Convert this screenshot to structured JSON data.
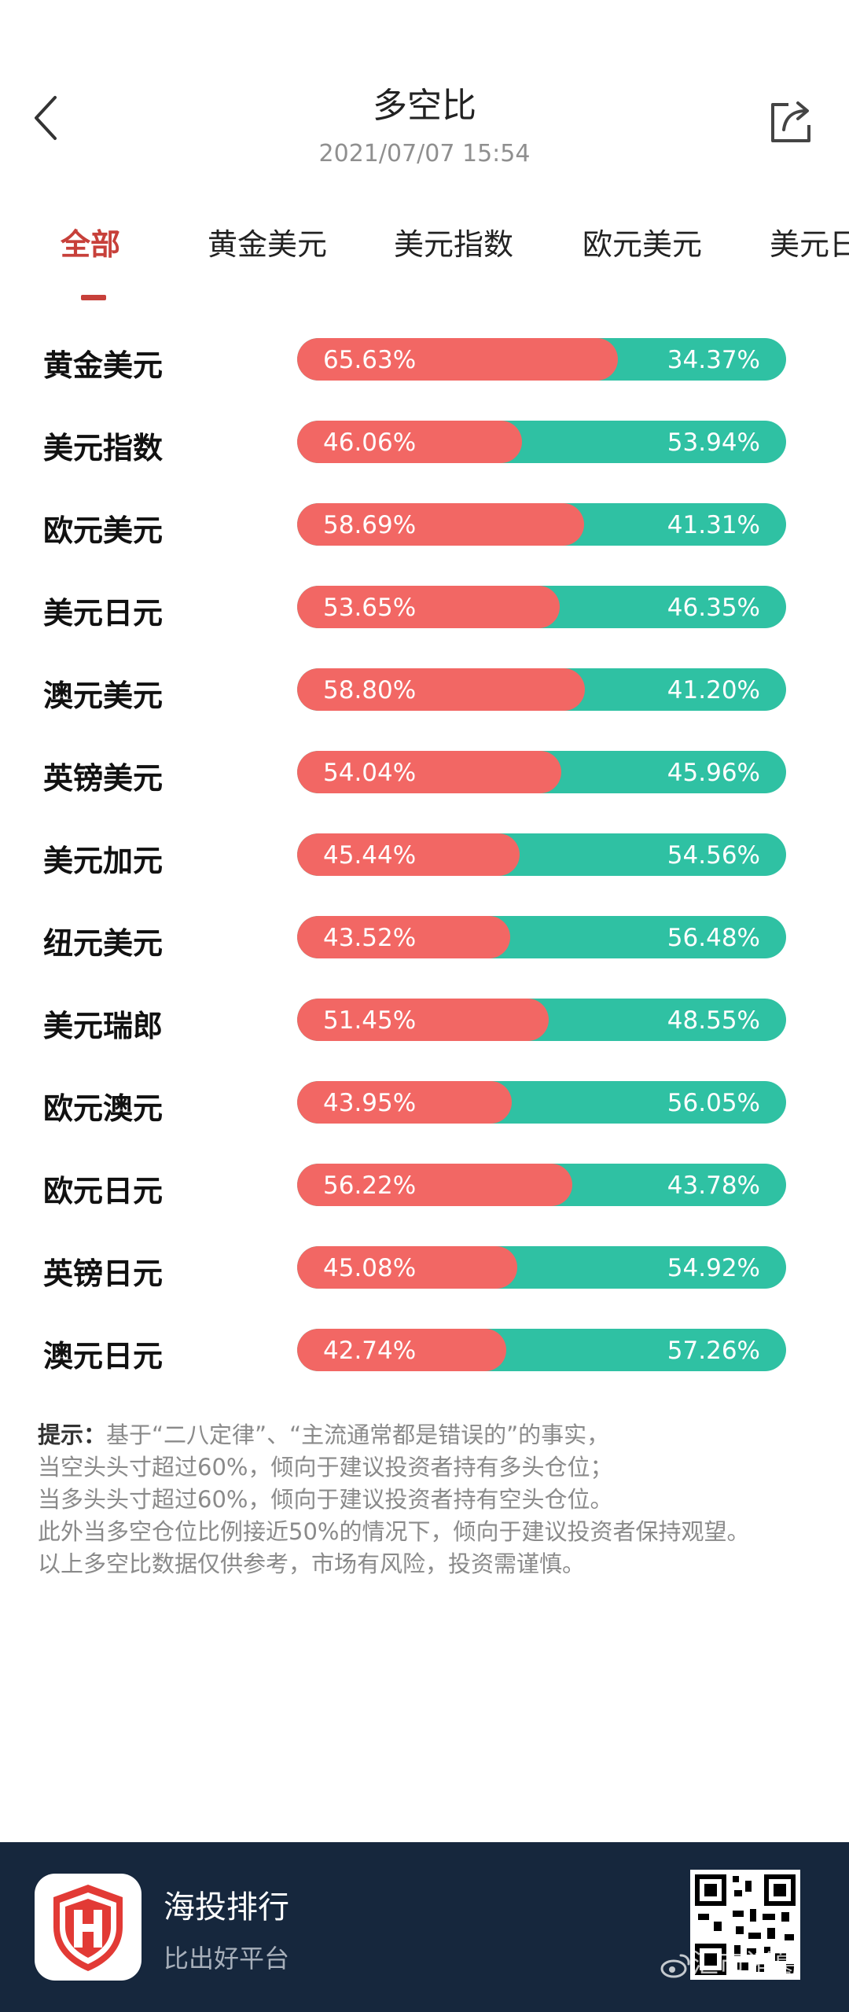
{
  "header": {
    "title": "多空比",
    "datetime": "2021/07/07 15:54"
  },
  "tabs": [
    {
      "label": "全部",
      "active": true
    },
    {
      "label": "黄金美元"
    },
    {
      "label": "美元指数"
    },
    {
      "label": "欧元美元"
    },
    {
      "label": "美元日"
    }
  ],
  "rows": [
    {
      "name": "黄金美元",
      "long": "65.63%",
      "short": "34.37%",
      "long_pct": 65.63
    },
    {
      "name": "美元指数",
      "long": "46.06%",
      "short": "53.94%",
      "long_pct": 46.06
    },
    {
      "name": "欧元美元",
      "long": "58.69%",
      "short": "41.31%",
      "long_pct": 58.69
    },
    {
      "name": "美元日元",
      "long": "53.65%",
      "short": "46.35%",
      "long_pct": 53.65
    },
    {
      "name": "澳元美元",
      "long": "58.80%",
      "short": "41.20%",
      "long_pct": 58.8
    },
    {
      "name": "英镑美元",
      "long": "54.04%",
      "short": "45.96%",
      "long_pct": 54.04
    },
    {
      "name": "美元加元",
      "long": "45.44%",
      "short": "54.56%",
      "long_pct": 45.44
    },
    {
      "name": "纽元美元",
      "long": "43.52%",
      "short": "56.48%",
      "long_pct": 43.52
    },
    {
      "name": "美元瑞郎",
      "long": "51.45%",
      "short": "48.55%",
      "long_pct": 51.45
    },
    {
      "name": "欧元澳元",
      "long": "43.95%",
      "short": "56.05%",
      "long_pct": 43.95
    },
    {
      "name": "欧元日元",
      "long": "56.22%",
      "short": "43.78%",
      "long_pct": 56.22
    },
    {
      "name": "英镑日元",
      "long": "45.08%",
      "short": "54.92%",
      "long_pct": 45.08
    },
    {
      "name": "澳元日元",
      "long": "42.74%",
      "short": "57.26%",
      "long_pct": 42.74
    }
  ],
  "tips": {
    "lead": "提示：",
    "line1": "基于“二八定律”、“主流通常都是错误的”的事实，",
    "line2": "当空头头寸超过60%，倾向于建议投资者持有多头仓位；",
    "line3": "当多头头寸超过60%，倾向于建议投资者持有空头仓位。",
    "line4": "此外当多空仓位比例接近50%的情况下，倾向于建议投资者保持观望。",
    "line5": "以上多空比数据仅供参考，市场有风险，投资需谨慎。"
  },
  "footer": {
    "app_name": "海投排行",
    "slogan": "比出好平台",
    "watermark": "汇市诸葛"
  },
  "colors": {
    "long": "#f26764",
    "short": "#2fc1a3",
    "accent": "#c7403a",
    "footer_bg": "#16273d"
  },
  "icons": {
    "back": "chevron-left-icon",
    "share": "share-icon",
    "logo": "shield-h-logo-icon",
    "qr": "qr-code-icon",
    "weibo": "weibo-icon"
  }
}
